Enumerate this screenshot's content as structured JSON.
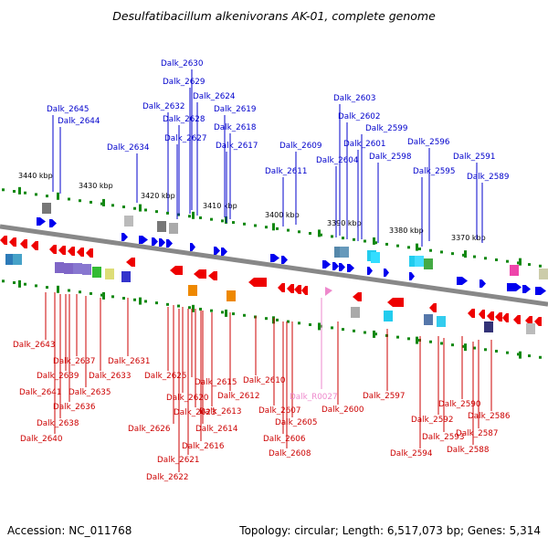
{
  "title": "Desulfatibacillum alkenivorans AK-01, complete genome",
  "footer": {
    "accession_label": "Accession:",
    "accession": "NC_011768",
    "topology_label": "Topology:",
    "topology": "circular;",
    "length_label": "Length:",
    "length": "6,517,073 bp;",
    "genes_label": "Genes:",
    "genes": "5,314"
  },
  "colors": {
    "forward_label": "#0000cc",
    "reverse_label": "#cc0000",
    "rna_label": "#ee88cc",
    "backbone": "#888888",
    "tick": "#118811"
  },
  "kbp_ticks": [
    "3440 kbp",
    "3430 kbp",
    "3420 kbp",
    "3410 kbp",
    "3400 kbp",
    "3390 kbp",
    "3380 kbp",
    "3370 kbp"
  ],
  "forward_genes": [
    "Dalk_2630",
    "Dalk_2629",
    "Dalk_2624",
    "Dalk_2632",
    "Dalk_2619",
    "Dalk_2628",
    "Dalk_2645",
    "Dalk_2618",
    "Dalk_2644",
    "Dalk_2627",
    "Dalk_2617",
    "Dalk_2634",
    "Dalk_2603",
    "Dalk_2602",
    "Dalk_2599",
    "Dalk_2601",
    "Dalk_2609",
    "Dalk_2596",
    "Dalk_2604",
    "Dalk_2598",
    "Dalk_2591",
    "Dalk_2611",
    "Dalk_2595",
    "Dalk_2589"
  ],
  "reverse_genes": [
    "Dalk_2643",
    "Dalk_2637",
    "Dalk_2631",
    "Dalk_2639",
    "Dalk_2633",
    "Dalk_2625",
    "Dalk_2641",
    "Dalk_2635",
    "Dalk_2615",
    "Dalk_2610",
    "Dalk_2620",
    "Dalk_2612",
    "Dalk_2636",
    "Dalk_2623",
    "Dalk_2613",
    "Dalk_2597",
    "Dalk_2638",
    "Dalk_2626",
    "Dalk_2607",
    "Dalk_2600",
    "Dalk_2590",
    "Dalk_2614",
    "Dalk_2605",
    "Dalk_2592",
    "Dalk_2586",
    "Dalk_2640",
    "Dalk_2593",
    "Dalk_2587",
    "Dalk_2616",
    "Dalk_2606",
    "Dalk_2594",
    "Dalk_2588",
    "Dalk_2621",
    "Dalk_2608",
    "Dalk_2622"
  ],
  "rna_genes": [
    "Dalk_R0027"
  ]
}
